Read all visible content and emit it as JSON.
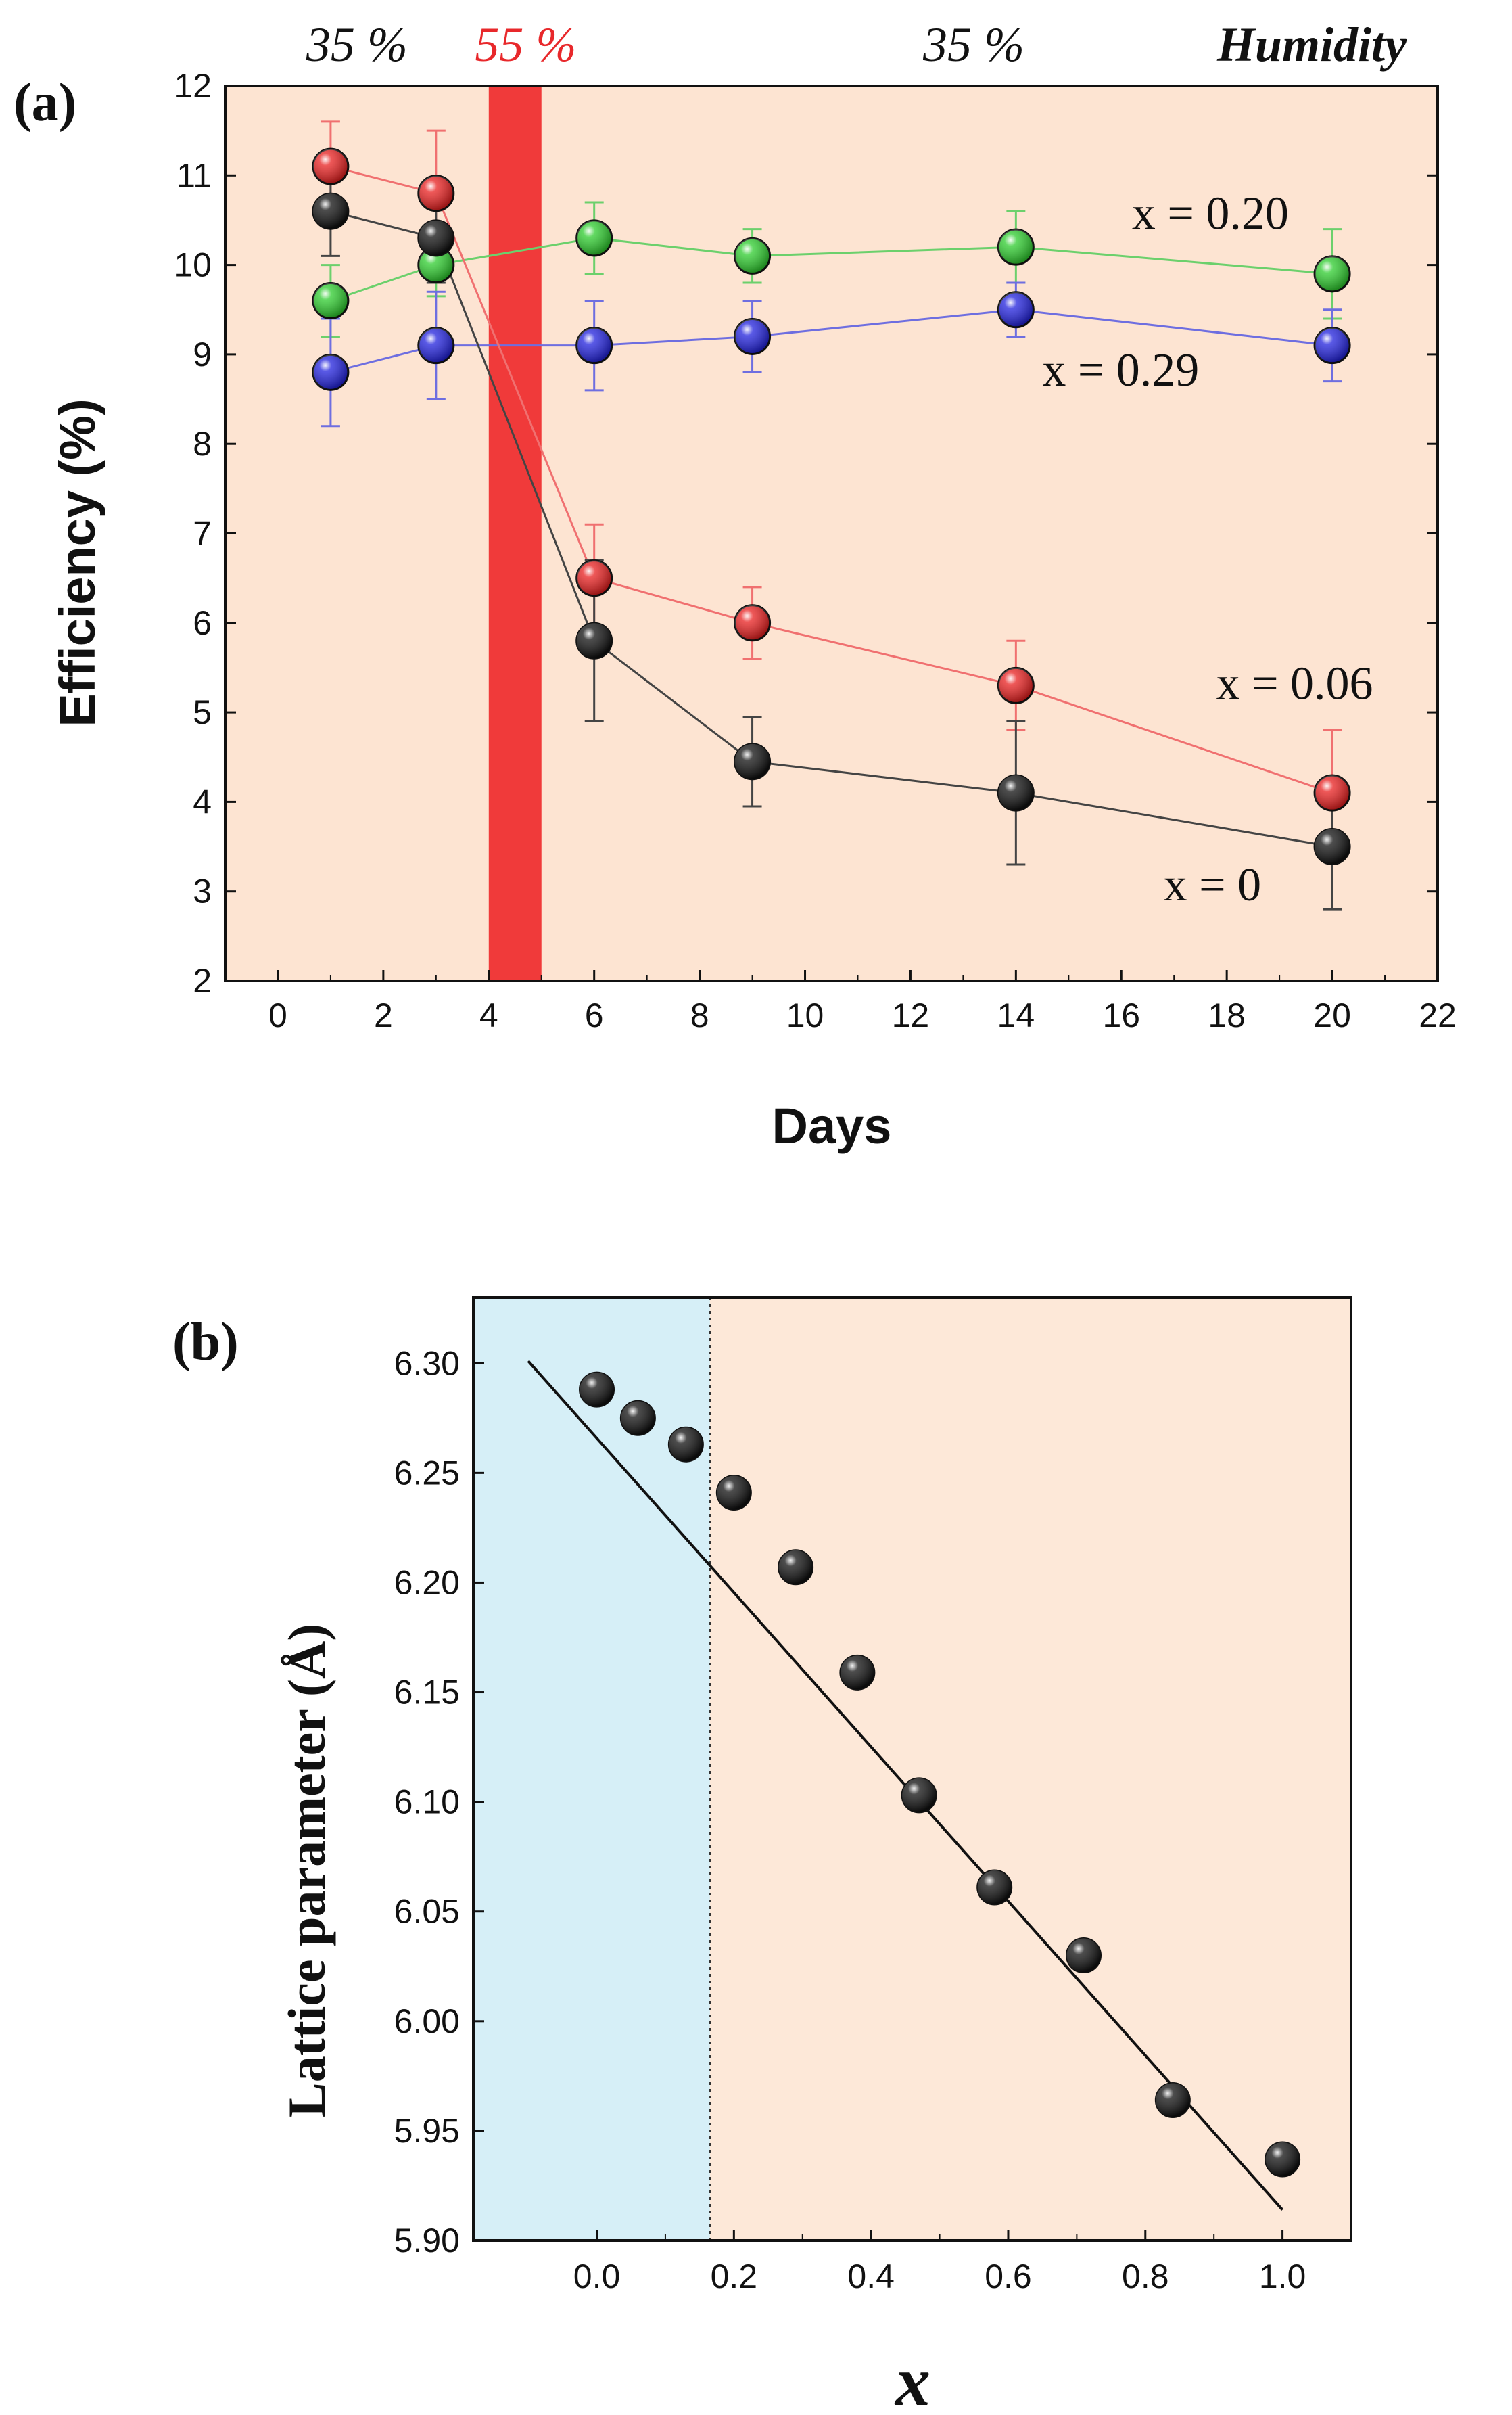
{
  "chart_data": [
    {
      "type": "line",
      "panel_label": "(a)",
      "xlabel": "Days",
      "ylabel": "Efficiency  (%)",
      "xlim": [
        -1,
        22
      ],
      "ylim": [
        2,
        12
      ],
      "xticks": [
        "0",
        "2",
        "4",
        "6",
        "8",
        "10",
        "12",
        "14",
        "16",
        "18",
        "20",
        "22"
      ],
      "yticks": [
        "2",
        "3",
        "4",
        "5",
        "6",
        "7",
        "8",
        "9",
        "10",
        "11",
        "12"
      ],
      "background_color": "#fde4d2",
      "humidity_band": {
        "x_start": 4,
        "x_end": 5,
        "color": "#f03a3a"
      },
      "humidity_labels": [
        {
          "text": "35 %",
          "x": 1.5,
          "color": "#111111"
        },
        {
          "text": "55 %",
          "x": 4.7,
          "color": "#e8282b"
        },
        {
          "text": "35 %",
          "x": 13.2,
          "color": "#111111"
        }
      ],
      "humidity_title": "Humidity",
      "series": [
        {
          "name": "x = 0.20",
          "color": "#2ecc2e",
          "line_color": "#6cd06c",
          "x": [
            1,
            3,
            6,
            9,
            14,
            20
          ],
          "y": [
            9.6,
            10.0,
            10.3,
            10.1,
            10.2,
            9.9
          ],
          "err": [
            0.4,
            0.35,
            0.4,
            0.3,
            0.4,
            0.5
          ],
          "label_pos": [
            16.2,
            10.4
          ]
        },
        {
          "name": "x = 0.29",
          "color": "#2222dd",
          "line_color": "#6e6ee0",
          "x": [
            1,
            3,
            6,
            9,
            14,
            20
          ],
          "y": [
            8.8,
            9.1,
            9.1,
            9.2,
            9.5,
            9.1
          ],
          "err": [
            0.6,
            0.6,
            0.5,
            0.4,
            0.3,
            0.4
          ],
          "label_pos": [
            14.5,
            8.65
          ]
        },
        {
          "name": "x = 0.06",
          "color": "#e82020",
          "line_color": "#f07070",
          "x": [
            1,
            3,
            6,
            9,
            14,
            20
          ],
          "y": [
            11.1,
            10.8,
            6.5,
            6.0,
            5.3,
            4.1
          ],
          "err": [
            0.5,
            0.7,
            0.6,
            0.4,
            0.5,
            0.7
          ],
          "label_pos": [
            17.8,
            5.15
          ]
        },
        {
          "name": "x = 0",
          "color": "#111111",
          "line_color": "#444444",
          "x": [
            1,
            3,
            6,
            9,
            14,
            20
          ],
          "y": [
            10.6,
            10.3,
            5.8,
            4.45,
            4.1,
            3.5
          ],
          "err": [
            0.5,
            0.5,
            0.9,
            0.5,
            0.8,
            0.7
          ],
          "label_pos": [
            16.8,
            2.9
          ]
        }
      ]
    },
    {
      "type": "scatter",
      "panel_label": "(b)",
      "xlabel": "x",
      "ylabel": "Lattice parameter (Å)",
      "xlim": [
        -0.18,
        1.1
      ],
      "ylim": [
        5.9,
        6.33
      ],
      "xticks": [
        "0.0",
        "0.2",
        "0.4",
        "0.6",
        "0.8",
        "1.0"
      ],
      "yticks": [
        "5.90",
        "5.95",
        "6.00",
        "6.05",
        "6.10",
        "6.15",
        "6.20",
        "6.25",
        "6.30"
      ],
      "background_color": "#fde8d8",
      "shaded_region": {
        "x_start": -0.18,
        "x_end": 0.165,
        "color": "#d6eff7"
      },
      "x": [
        0.0,
        0.06,
        0.13,
        0.2,
        0.29,
        0.38,
        0.47,
        0.58,
        0.71,
        0.84,
        1.0
      ],
      "y": [
        6.288,
        6.275,
        6.263,
        6.241,
        6.207,
        6.159,
        6.103,
        6.061,
        6.03,
        5.964,
        5.937
      ],
      "fit_line": {
        "x": [
          -0.1,
          1.0
        ],
        "y": [
          6.301,
          5.914
        ]
      }
    }
  ]
}
